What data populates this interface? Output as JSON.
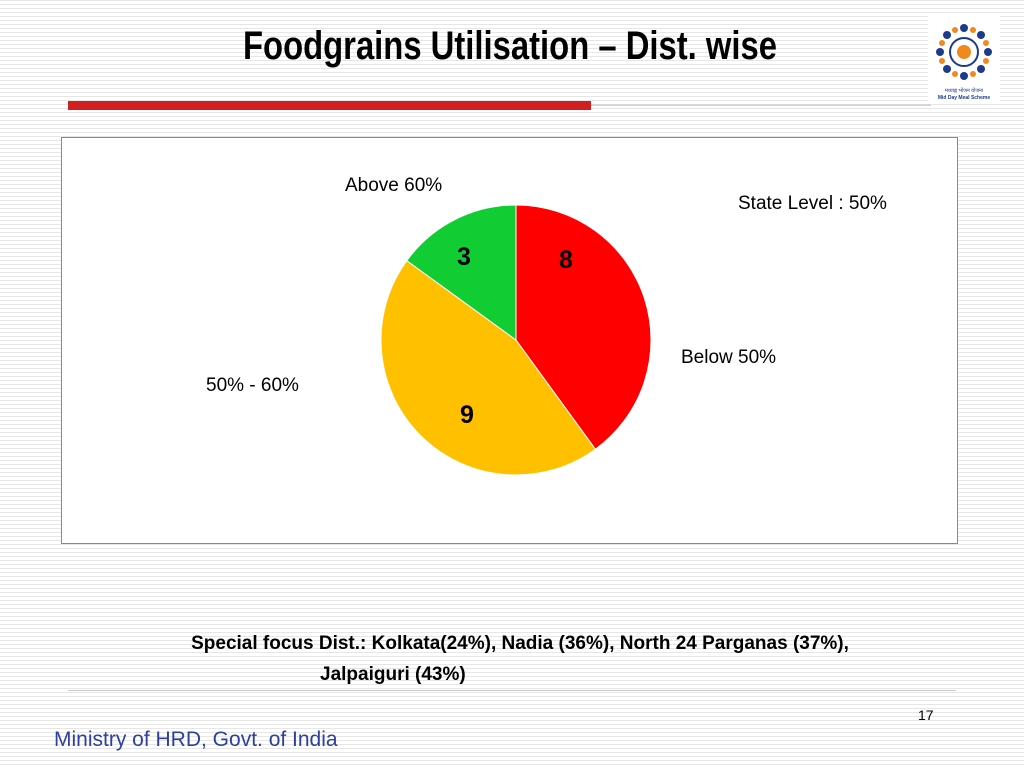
{
  "slide": {
    "title": "Foodgrains Utilisation – Dist. wise",
    "page_number": "17",
    "footer": "Ministry of HRD, Govt. of India"
  },
  "logo": {
    "line1": "मध्याह्न भोजन योजना",
    "line2": "Mid Day Meal Scheme"
  },
  "chart_data": {
    "type": "pie",
    "categories": [
      "Below 50%",
      "50% - 60%",
      "Above  60%"
    ],
    "values": [
      8,
      9,
      3
    ],
    "colors": [
      "#ff0000",
      "#ffc000",
      "#11cc33"
    ],
    "annotation": "State  Level : 50%",
    "data_labels": [
      "8",
      "9",
      "3"
    ]
  },
  "special_focus": {
    "line1": "Special focus Dist.: Kolkata(24%), Nadia (36%), North 24 Parganas (37%),",
    "line2": "Jalpaiguri (43%)"
  }
}
